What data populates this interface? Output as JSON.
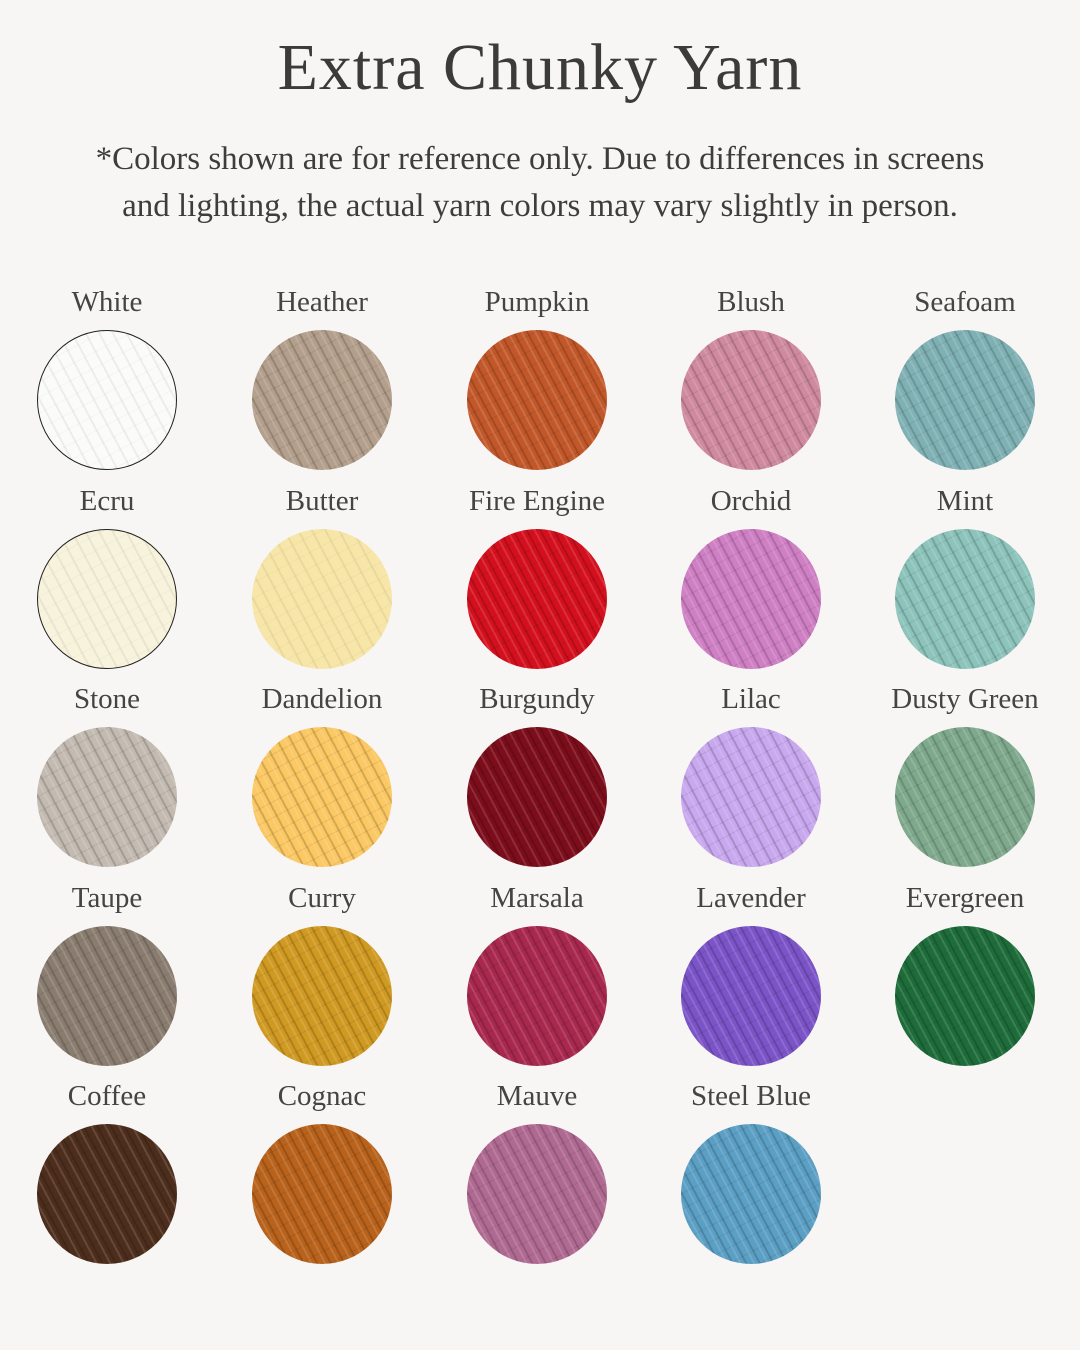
{
  "header": {
    "title": "Extra Chunky Yarn",
    "subtitle_line1": "*Colors shown are for reference only. Due to differences in screens",
    "subtitle_line2": "and lighting, the actual yarn colors may vary slightly in person."
  },
  "colors": [
    {
      "name": "White",
      "hex": "#fbfbfa",
      "light": true,
      "bordered": true
    },
    {
      "name": "Heather",
      "hex": "#b39f8c"
    },
    {
      "name": "Pumpkin",
      "hex": "#c2582a"
    },
    {
      "name": "Blush",
      "hex": "#cf8a9e"
    },
    {
      "name": "Seafoam",
      "hex": "#7fb1b4"
    },
    {
      "name": "Ecru",
      "hex": "#f8f3dc",
      "light": true,
      "bordered": true
    },
    {
      "name": "Butter",
      "hex": "#f7e6a8",
      "light": true
    },
    {
      "name": "Fire Engine",
      "hex": "#d4101e"
    },
    {
      "name": "Orchid",
      "hex": "#cf7fc4"
    },
    {
      "name": "Mint",
      "hex": "#8cc3bb"
    },
    {
      "name": "Stone",
      "hex": "#c3bbb1"
    },
    {
      "name": "Dandelion",
      "hex": "#fbc863"
    },
    {
      "name": "Burgundy",
      "hex": "#7c0d1b"
    },
    {
      "name": "Lilac",
      "hex": "#c8a8ee"
    },
    {
      "name": "Dusty Green",
      "hex": "#7fa98d"
    },
    {
      "name": "Taupe",
      "hex": "#8a7d70"
    },
    {
      "name": "Curry",
      "hex": "#d09a22"
    },
    {
      "name": "Marsala",
      "hex": "#a8284e"
    },
    {
      "name": "Lavender",
      "hex": "#7b54c8"
    },
    {
      "name": "Evergreen",
      "hex": "#1e6c3a"
    },
    {
      "name": "Coffee",
      "hex": "#4d2e1d"
    },
    {
      "name": "Cognac",
      "hex": "#b8621b"
    },
    {
      "name": "Mauve",
      "hex": "#b06a92"
    },
    {
      "name": "Steel Blue",
      "hex": "#5b9fc4"
    }
  ]
}
